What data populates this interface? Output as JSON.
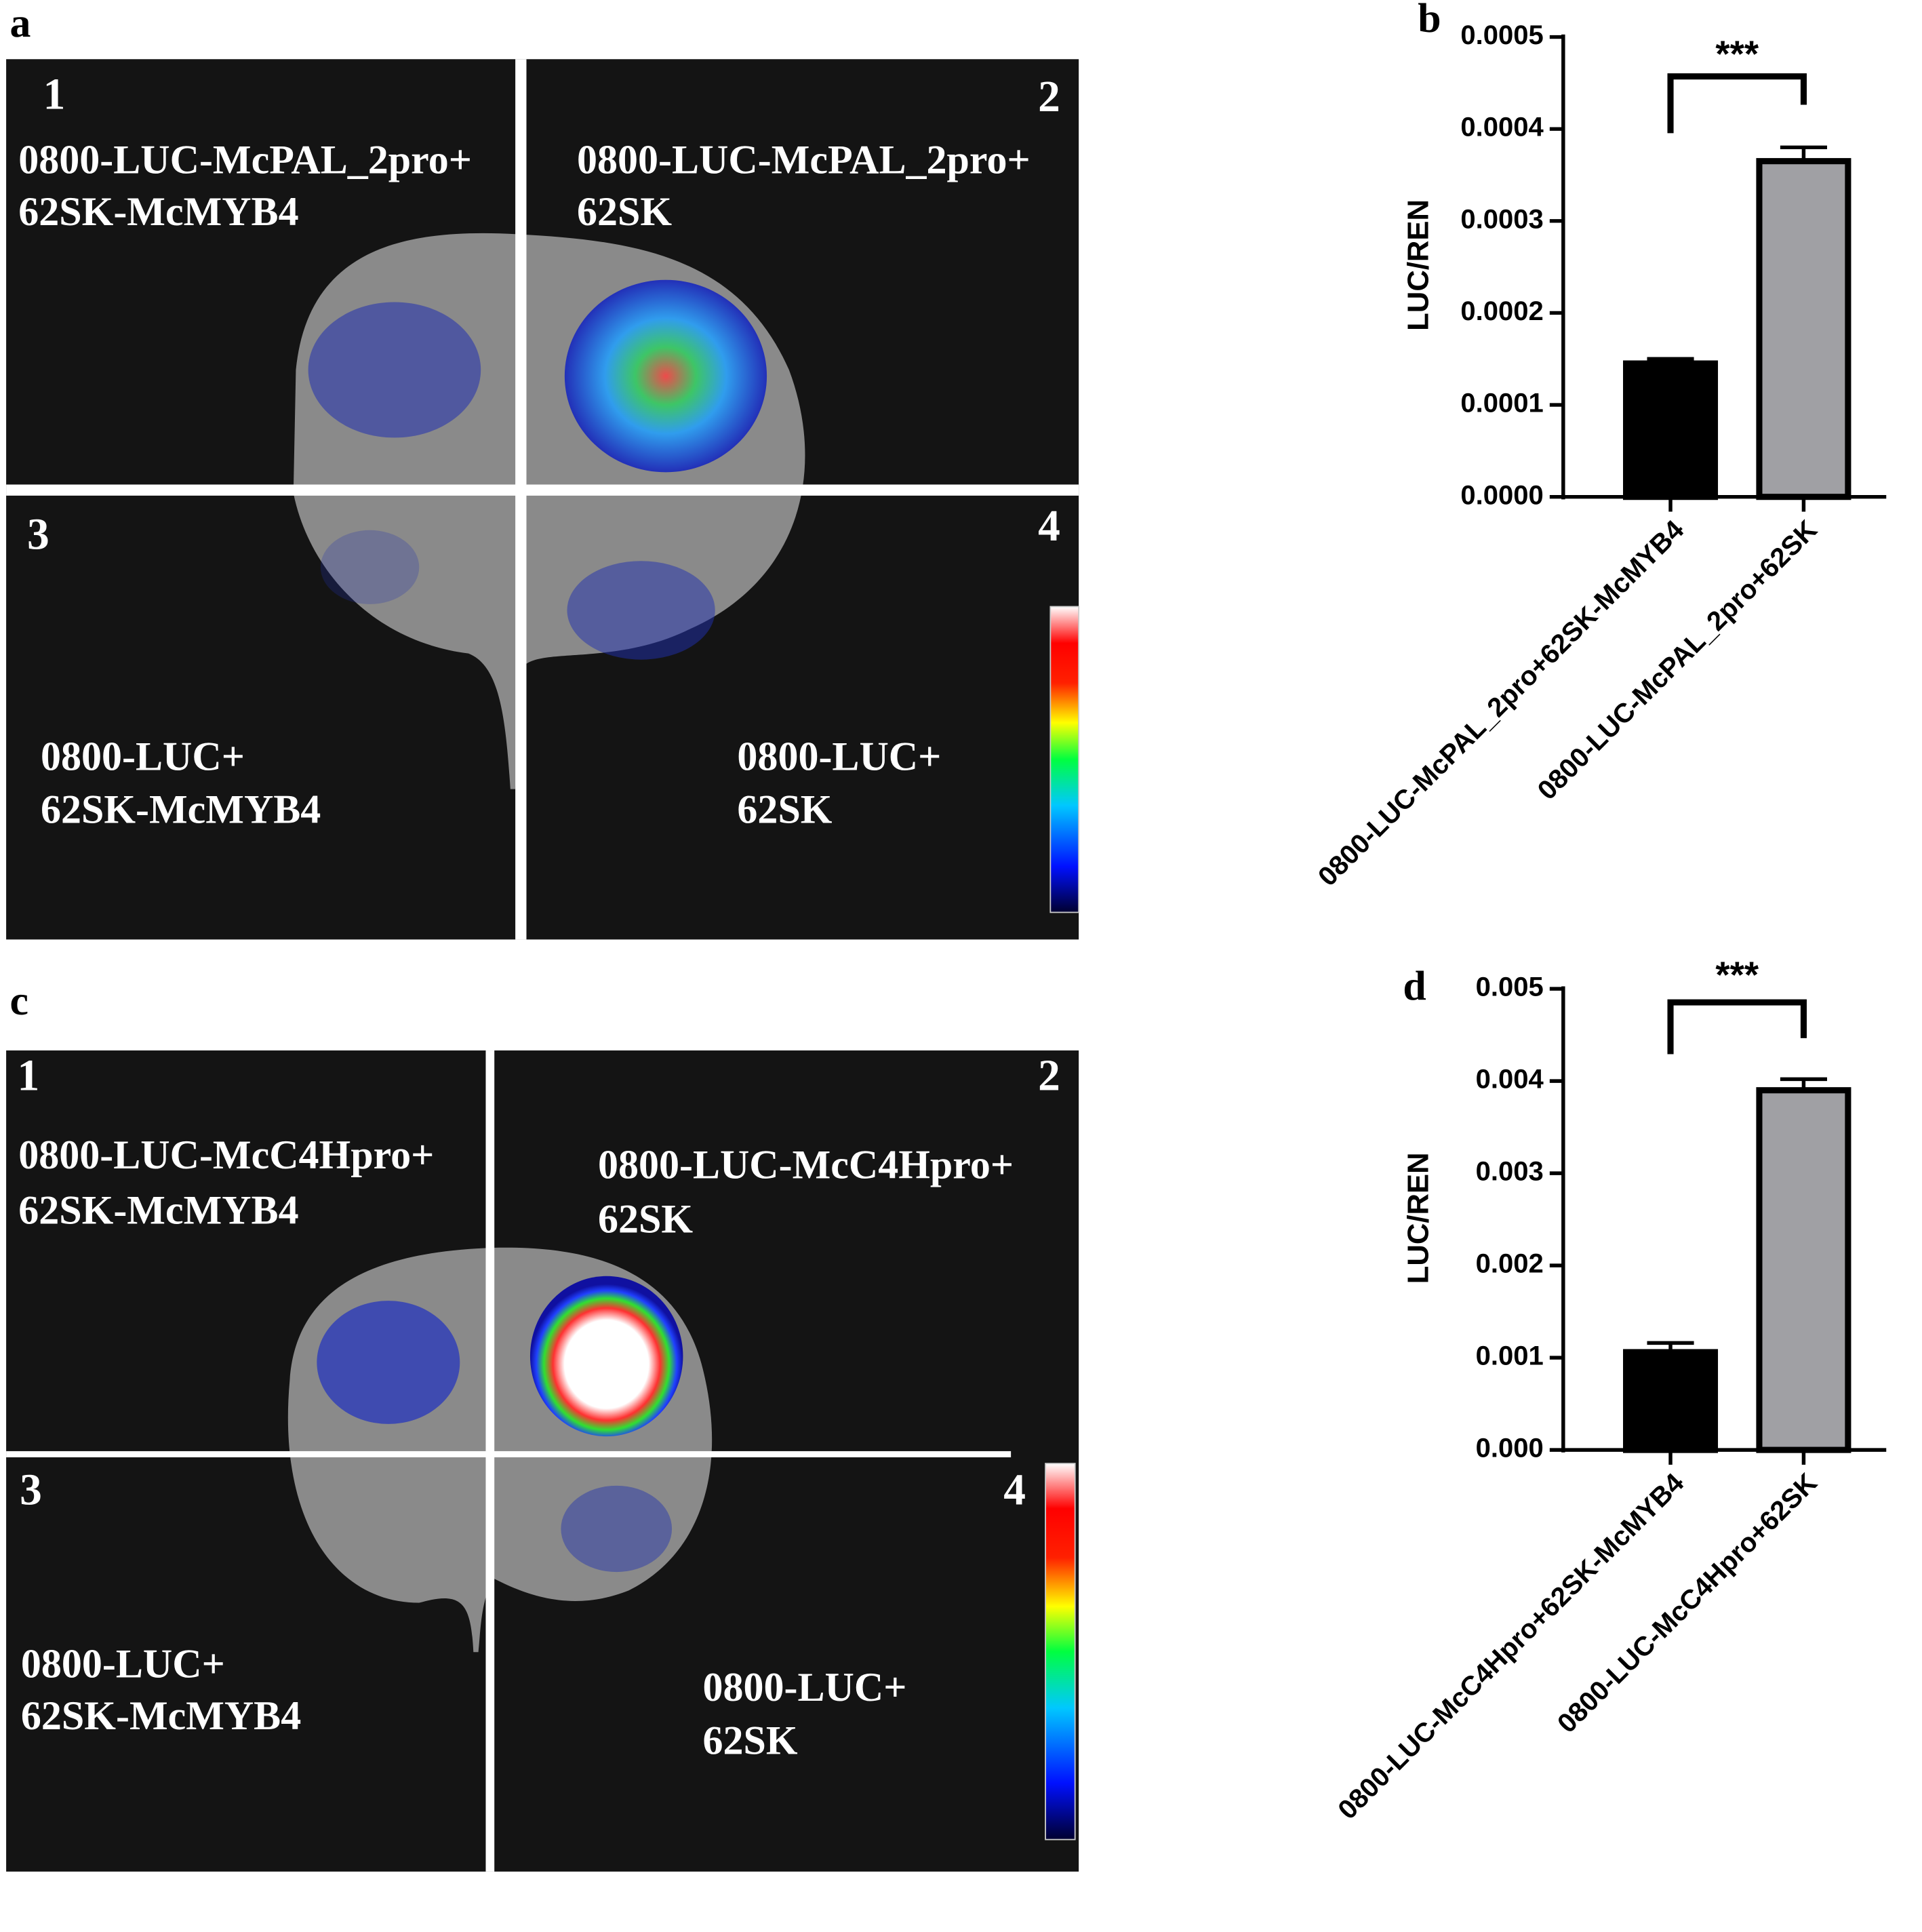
{
  "panels": [
    {
      "letter": "a",
      "quadrants": [
        {
          "number": "1",
          "lines": [
            "0800-LUC-McPAL_2pro+",
            "62SK-McMYB4"
          ]
        },
        {
          "number": "2",
          "lines": [
            "0800-LUC-McPAL_2pro+",
            "62SK"
          ]
        },
        {
          "number": "3",
          "lines": [
            "0800-LUC+",
            "62SK-McMYB4"
          ]
        },
        {
          "number": "4",
          "lines": [
            "0800-LUC+",
            "62SK"
          ]
        }
      ]
    },
    {
      "letter": "c",
      "quadrants": [
        {
          "number": "1",
          "lines": [
            "0800-LUC-McC4Hpro+",
            "62SK-McMYB4"
          ]
        },
        {
          "number": "2",
          "lines": [
            "0800-LUC-McC4Hpro+",
            "62SK"
          ]
        },
        {
          "number": "3",
          "lines": [
            "0800-LUC+",
            "62SK-McMYB4"
          ]
        },
        {
          "number": "4",
          "lines": [
            "0800-LUC+",
            "62SK"
          ]
        }
      ]
    }
  ],
  "chart_data": [
    {
      "type": "bar",
      "panel_label": "b",
      "y_label": "LUC/REN",
      "annotation": "***",
      "categories": [
        "0800-LUC-McPAL_2pro+62SK-McMYB4",
        "0800-LUC-McPAL_2pro+62SK"
      ],
      "values": [
        0.000145,
        0.000365
      ],
      "errors": [
        5e-06,
        1.5e-05
      ],
      "colors": [
        "#000000",
        "#a0a0a4"
      ],
      "ylim": [
        0,
        0.0005
      ],
      "yticks": [
        {
          "value": 0,
          "label": "0.0000"
        },
        {
          "value": 0.0001,
          "label": "0.0001"
        },
        {
          "value": 0.0002,
          "label": "0.0002"
        },
        {
          "value": 0.0003,
          "label": "0.0003"
        },
        {
          "value": 0.0004,
          "label": "0.0004"
        },
        {
          "value": 0.0005,
          "label": "0.0005"
        }
      ]
    },
    {
      "type": "bar",
      "panel_label": "d",
      "y_label": "LUC/REN",
      "annotation": "***",
      "categories": [
        "0800-LUC-McC4Hpro+62SK-McMYB4",
        "0800-LUC-McC4Hpro+62SK"
      ],
      "values": [
        0.00106,
        0.0039
      ],
      "errors": [
        0.0001,
        0.00012
      ],
      "colors": [
        "#000000",
        "#a0a0a4"
      ],
      "ylim": [
        0,
        0.005
      ],
      "yticks": [
        {
          "value": 0,
          "label": "0.000"
        },
        {
          "value": 0.001,
          "label": "0.001"
        },
        {
          "value": 0.002,
          "label": "0.002"
        },
        {
          "value": 0.003,
          "label": "0.003"
        },
        {
          "value": 0.004,
          "label": "0.004"
        },
        {
          "value": 0.005,
          "label": "0.005"
        }
      ]
    }
  ]
}
